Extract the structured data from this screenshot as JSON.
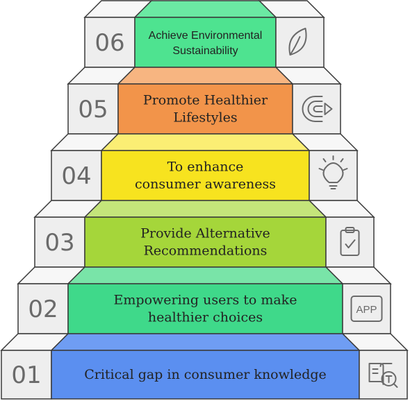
{
  "steps": [
    {
      "number": "01",
      "label": [
        "Critical gap in consumer knowledge"
      ],
      "icon": "book-search-icon",
      "color": "#5b8ff0",
      "top_color": "#6f9df3"
    },
    {
      "number": "02",
      "label": [
        "Empowering users to make",
        "healthier choices"
      ],
      "icon": "app-icon",
      "color": "#3fd98a",
      "top_color": "#79e4a8",
      "icon_text": "APP"
    },
    {
      "number": "03",
      "label": [
        "Provide Alternative",
        "Recommendations"
      ],
      "icon": "clipboard-check-icon",
      "color": "#a5d63a",
      "top_color": "#c4e57a"
    },
    {
      "number": "04",
      "label": [
        "To enhance",
        "consumer awareness"
      ],
      "icon": "lightbulb-icon",
      "color": "#f7e31f",
      "top_color": "#fbee74"
    },
    {
      "number": "05",
      "label": [
        "Promote Healthier",
        "Lifestyles"
      ],
      "icon": "target-arrow-icon",
      "color": "#f2944a",
      "top_color": "#f7b581"
    },
    {
      "number": "06",
      "label": [
        "Achieve Environmental",
        "Sustainability"
      ],
      "icon": "leaf-icon",
      "color": "#4ee390",
      "top_color": "#6be9a3"
    }
  ],
  "colors": {
    "side_face": "#eeeeee",
    "side_top": "#f7f7f7",
    "edge": "#3a3a3a",
    "icon": "#6a6a6a"
  }
}
